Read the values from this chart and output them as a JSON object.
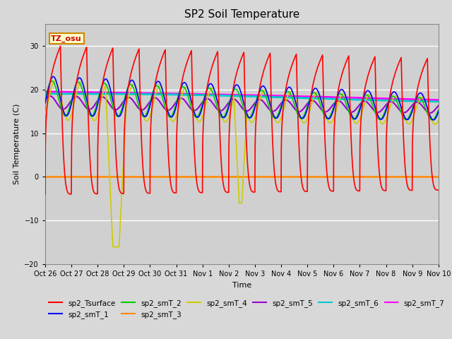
{
  "title": "SP2 Soil Temperature",
  "xlabel": "Time",
  "ylabel": "Soil Temperature (C)",
  "ylim": [
    -20,
    35
  ],
  "bg_color": "#d8d8d8",
  "annotation_text": "TZ_osu",
  "annotation_bg": "#ffffcc",
  "annotation_border": "#cc8800",
  "series_colors": {
    "sp2_Tsurface": "#ff0000",
    "sp2_smT_1": "#0000ff",
    "sp2_smT_2": "#00cc00",
    "sp2_smT_3": "#ff8800",
    "sp2_smT_4": "#cccc00",
    "sp2_smT_5": "#9900cc",
    "sp2_smT_6": "#00cccc",
    "sp2_smT_7": "#ff00ff"
  },
  "x_tick_labels": [
    "Oct 26",
    "Oct 27",
    "Oct 28",
    "Oct 29",
    "Oct 30",
    "Oct 31",
    "Nov 1",
    "Nov 2",
    "Nov 3",
    "Nov 4",
    "Nov 5",
    "Nov 6",
    "Nov 7",
    "Nov 8",
    "Nov 9",
    "Nov 10"
  ],
  "num_days": 15,
  "points_per_day": 288
}
